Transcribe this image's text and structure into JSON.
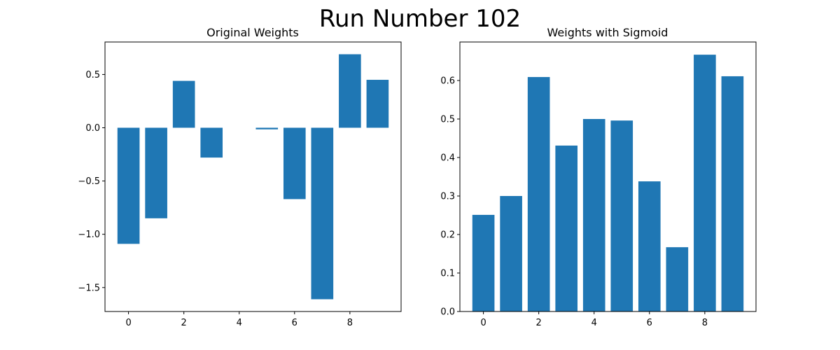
{
  "figure": {
    "title": "Run Number 102",
    "bar_color": "#1f77b4"
  },
  "chart_data": [
    {
      "type": "bar",
      "title": "Original Weights",
      "x": [
        0,
        1,
        2,
        3,
        4,
        5,
        6,
        7,
        8,
        9
      ],
      "values": [
        -1.09,
        -0.85,
        0.44,
        -0.28,
        0.0,
        -0.015,
        -0.67,
        -1.61,
        0.69,
        0.45
      ],
      "xlim": [
        -0.85,
        9.85
      ],
      "ylim": [
        -1.725,
        0.805
      ],
      "xticks": [
        0,
        2,
        4,
        6,
        8
      ],
      "xtick_labels": [
        "0",
        "2",
        "4",
        "6",
        "8"
      ],
      "yticks": [
        0.5,
        0.0,
        -0.5,
        -1.0,
        -1.5
      ],
      "ytick_labels": [
        "0.5",
        "0.0",
        "−0.5",
        "−1.0",
        "−1.5"
      ],
      "xlabel": "",
      "ylabel": "",
      "grid": false
    },
    {
      "type": "bar",
      "title": "Weights with Sigmoid",
      "x": [
        0,
        1,
        2,
        3,
        4,
        5,
        6,
        7,
        8,
        9
      ],
      "values": [
        0.251,
        0.3,
        0.609,
        0.431,
        0.5,
        0.496,
        0.338,
        0.167,
        0.667,
        0.611
      ],
      "xlim": [
        -0.85,
        9.85
      ],
      "ylim": [
        0.0,
        0.7
      ],
      "xticks": [
        0,
        2,
        4,
        6,
        8
      ],
      "xtick_labels": [
        "0",
        "2",
        "4",
        "6",
        "8"
      ],
      "yticks": [
        0.0,
        0.1,
        0.2,
        0.3,
        0.4,
        0.5,
        0.6
      ],
      "ytick_labels": [
        "0.0",
        "0.1",
        "0.2",
        "0.3",
        "0.4",
        "0.5",
        "0.6"
      ],
      "xlabel": "",
      "ylabel": "",
      "grid": false
    }
  ]
}
